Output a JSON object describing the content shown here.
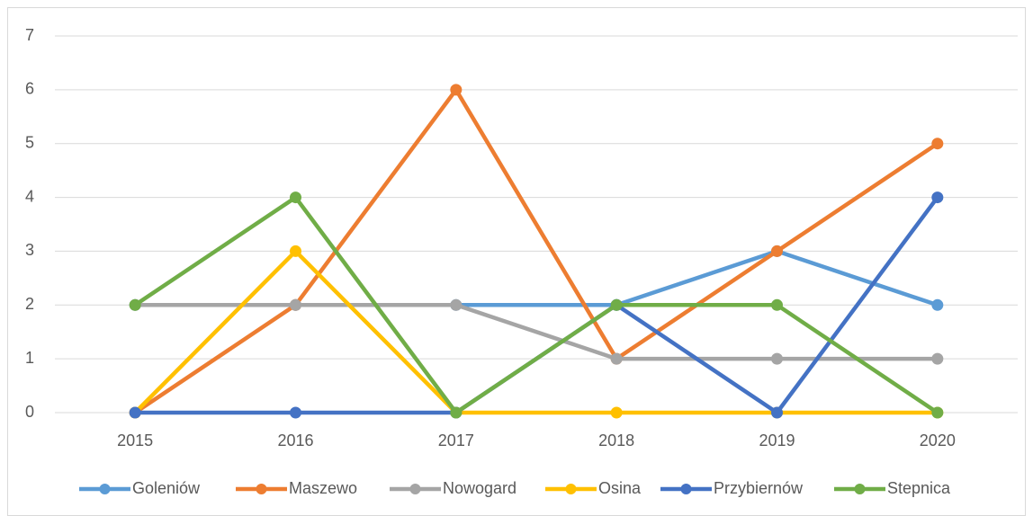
{
  "chart_data": {
    "type": "line",
    "categories": [
      "2015",
      "2016",
      "2017",
      "2018",
      "2019",
      "2020"
    ],
    "series": [
      {
        "name": "Goleniów",
        "color": "#5b9bd5",
        "values": [
          2,
          2,
          2,
          2,
          3,
          2
        ]
      },
      {
        "name": "Maszewo",
        "color": "#ed7d31",
        "values": [
          0,
          2,
          6,
          1,
          3,
          5
        ]
      },
      {
        "name": "Nowogard",
        "color": "#a5a5a5",
        "values": [
          2,
          2,
          2,
          1,
          1,
          1
        ]
      },
      {
        "name": "Osina",
        "color": "#ffc000",
        "values": [
          0,
          3,
          0,
          0,
          0,
          0
        ]
      },
      {
        "name": "Przybiernów",
        "color": "#4472c4",
        "values": [
          0,
          0,
          0,
          2,
          0,
          4
        ]
      },
      {
        "name": "Stepnica",
        "color": "#70ad47",
        "values": [
          2,
          4,
          0,
          2,
          2,
          0
        ]
      }
    ],
    "ylim": [
      0,
      7
    ],
    "yticks": [
      0,
      1,
      2,
      3,
      4,
      5,
      6,
      7
    ],
    "grid": true,
    "legend": "bottom"
  }
}
